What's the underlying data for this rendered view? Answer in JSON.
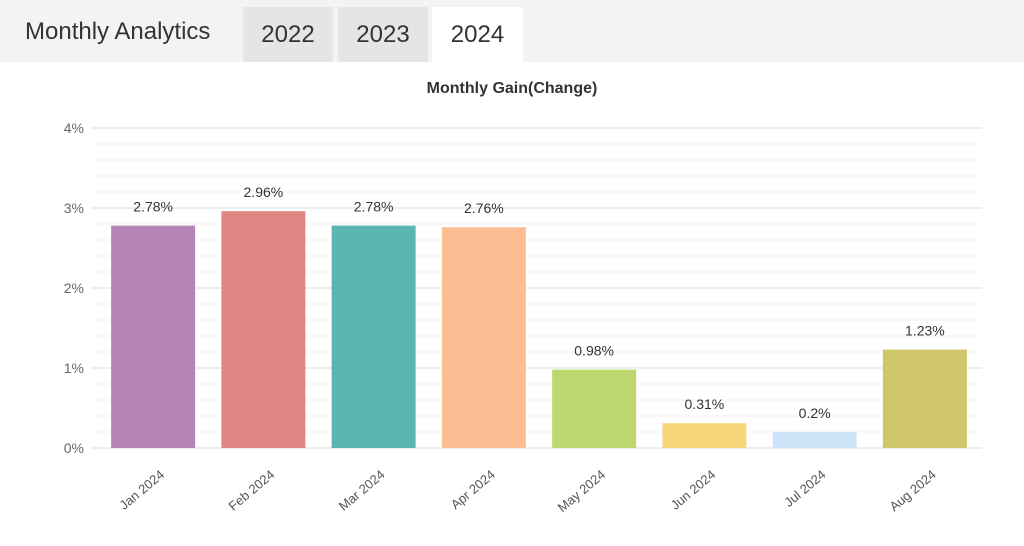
{
  "header": {
    "title": "Monthly Analytics",
    "tabs": [
      {
        "label": "2022",
        "active": false
      },
      {
        "label": "2023",
        "active": false
      },
      {
        "label": "2024",
        "active": true
      }
    ]
  },
  "chart_data": {
    "type": "bar",
    "title": "Monthly Gain(Change)",
    "categories": [
      "Jan 2024",
      "Feb 2024",
      "Mar 2024",
      "Apr 2024",
      "May 2024",
      "Jun 2024",
      "Jul 2024",
      "Aug 2024"
    ],
    "values": [
      2.78,
      2.96,
      2.78,
      2.76,
      0.98,
      0.31,
      0.2,
      1.23
    ],
    "value_labels": [
      "2.78%",
      "2.96%",
      "2.78%",
      "2.76%",
      "0.98%",
      "0.31%",
      "0.2%",
      "1.23%"
    ],
    "colors": [
      "#b384b5",
      "#e08683",
      "#5bb5b3",
      "#fdbe94",
      "#bdd86f",
      "#f8d67a",
      "#cfe4f8",
      "#cfc76a"
    ],
    "ylim": [
      0,
      4
    ],
    "yticks": [
      0,
      1,
      2,
      3,
      4
    ],
    "ytick_labels": [
      "0%",
      "1%",
      "2%",
      "3%",
      "4%"
    ],
    "grid": true,
    "minor_grid": true,
    "xlabel": "",
    "ylabel": ""
  }
}
